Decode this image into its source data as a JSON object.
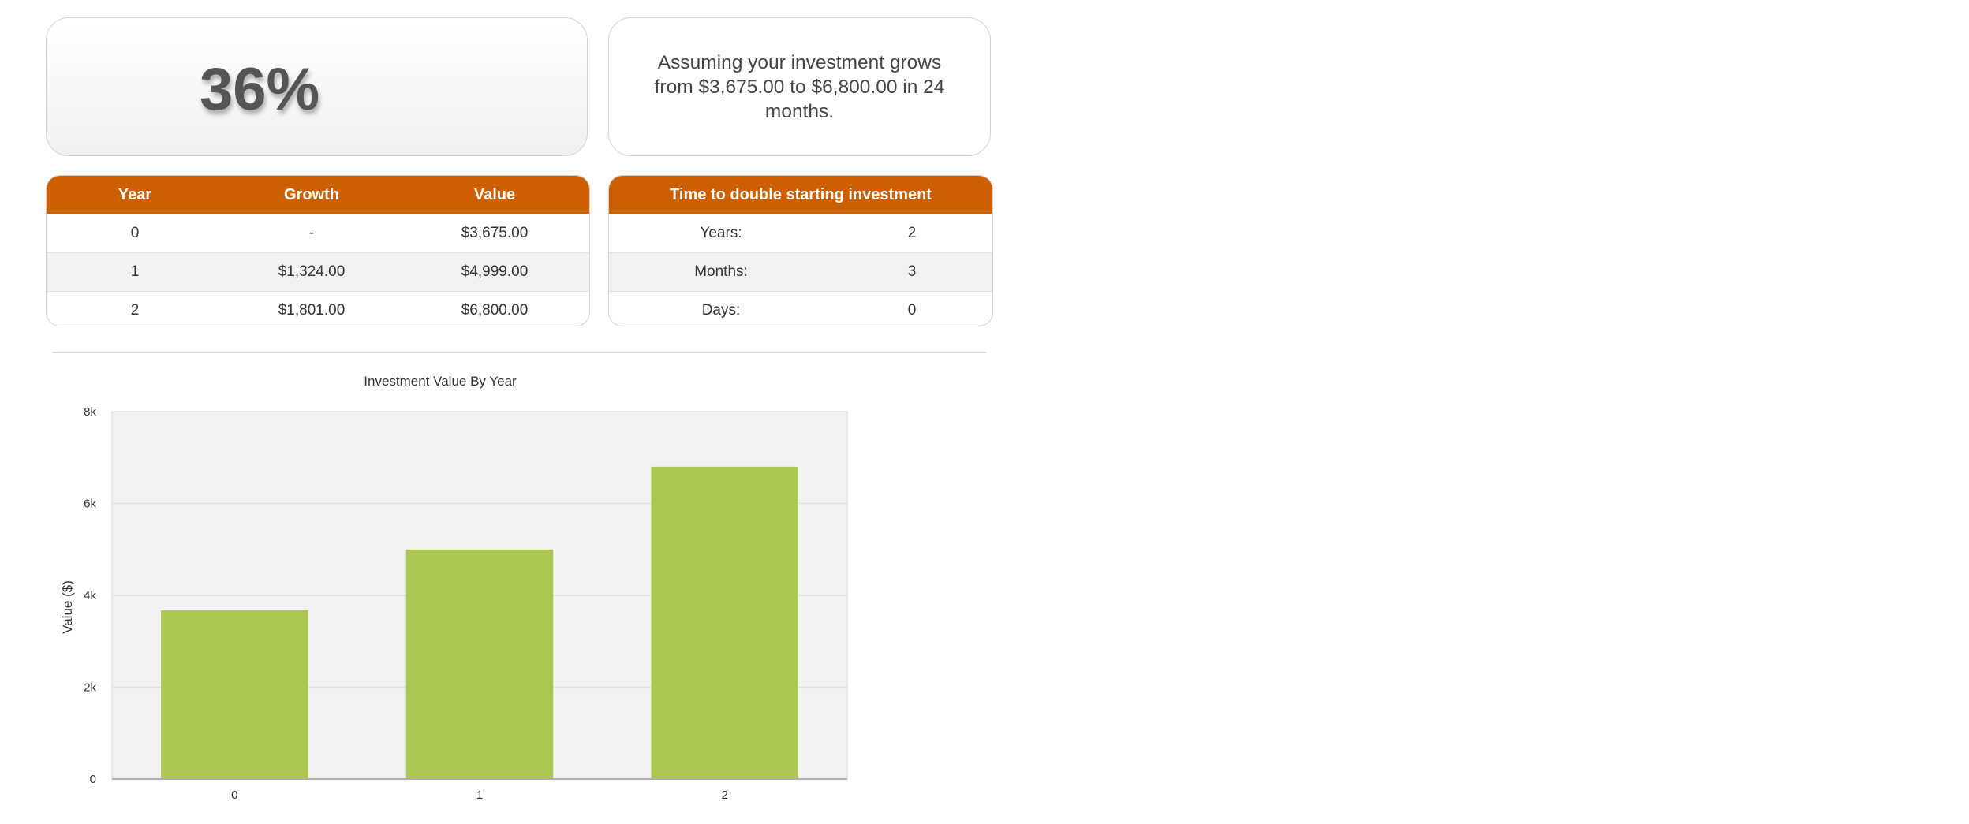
{
  "rate_panel": {
    "value": "36%"
  },
  "summary_panel": {
    "text": "Assuming your investment grows from $3,675.00 to $6,800.00 in 24 months."
  },
  "growth_table": {
    "headers": [
      "Year",
      "Growth",
      "Value"
    ],
    "rows": [
      [
        "0",
        "-",
        "$3,675.00"
      ],
      [
        "1",
        "$1,324.00",
        "$4,999.00"
      ],
      [
        "2",
        "$1,801.00",
        "$6,800.00"
      ]
    ]
  },
  "double_table": {
    "header": "Time to double starting investment",
    "rows": [
      [
        "Years:",
        "2"
      ],
      [
        "Months:",
        "3"
      ],
      [
        "Days:",
        "0"
      ]
    ]
  },
  "colors": {
    "header_orange": "#cc6000",
    "bar_green": "#abc751",
    "plot_background": "#f2f2f2"
  },
  "chart_data": {
    "type": "bar",
    "title": "Investment Value By Year",
    "ylabel": "Value ($)",
    "xlabel": "",
    "categories": [
      "0",
      "1",
      "2"
    ],
    "values": [
      3675,
      4999,
      6800
    ],
    "ylim": [
      0,
      8000
    ],
    "yticks": [
      0,
      2000,
      4000,
      6000,
      8000
    ],
    "ytick_labels": [
      "0",
      "2k",
      "4k",
      "6k",
      "8k"
    ],
    "grid": true,
    "legend": "none"
  }
}
